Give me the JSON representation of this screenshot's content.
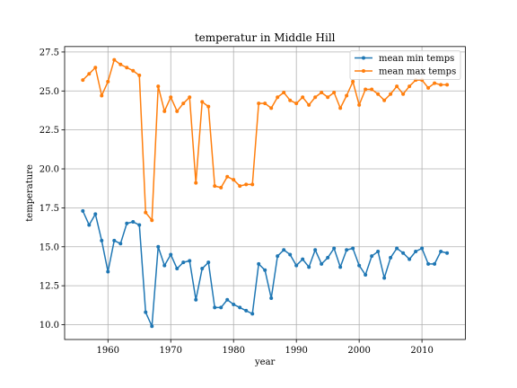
{
  "chart_data": {
    "type": "line",
    "title": "temperatur in Middle Hill",
    "xlabel": "year",
    "ylabel": "temperature",
    "xlim": [
      1953.1,
      2016.9
    ],
    "ylim": [
      9.05,
      27.85
    ],
    "xticks": [
      1960,
      1970,
      1980,
      1990,
      2000,
      2010
    ],
    "yticks": [
      10.0,
      12.5,
      15.0,
      17.5,
      20.0,
      22.5,
      25.0,
      27.5
    ],
    "grid": true,
    "legend_position": "top-right",
    "x": [
      1956,
      1957,
      1958,
      1959,
      1960,
      1961,
      1962,
      1963,
      1964,
      1965,
      1966,
      1967,
      1968,
      1969,
      1970,
      1971,
      1972,
      1973,
      1974,
      1975,
      1976,
      1977,
      1978,
      1979,
      1980,
      1981,
      1982,
      1983,
      1984,
      1985,
      1986,
      1987,
      1988,
      1989,
      1990,
      1991,
      1992,
      1993,
      1994,
      1995,
      1996,
      1997,
      1998,
      1999,
      2000,
      2001,
      2002,
      2003,
      2004,
      2005,
      2006,
      2007,
      2008,
      2009,
      2010,
      2011,
      2012,
      2013,
      2014
    ],
    "series": [
      {
        "name": "mean min temps",
        "color": "#1f77b4",
        "values": [
          17.3,
          16.4,
          17.1,
          15.4,
          13.4,
          15.4,
          15.2,
          16.5,
          16.6,
          16.4,
          10.8,
          9.9,
          15.0,
          13.8,
          14.5,
          13.6,
          14.0,
          14.1,
          11.6,
          13.6,
          14.0,
          11.1,
          11.1,
          11.6,
          11.3,
          11.1,
          10.9,
          10.7,
          13.9,
          13.5,
          11.7,
          14.4,
          14.8,
          14.5,
          13.8,
          14.2,
          13.7,
          14.8,
          13.9,
          14.3,
          14.9,
          13.7,
          14.8,
          14.9,
          13.8,
          13.2,
          14.4,
          14.7,
          13.0,
          14.3,
          14.9,
          14.6,
          14.2,
          14.7,
          14.9,
          13.9,
          13.9,
          14.7,
          14.6
        ]
      },
      {
        "name": "mean max temps",
        "color": "#ff7f0e",
        "values": [
          25.7,
          26.1,
          26.5,
          24.7,
          25.6,
          27.0,
          26.7,
          26.5,
          26.3,
          26.0,
          17.2,
          16.7,
          25.3,
          23.7,
          24.6,
          23.7,
          24.2,
          24.6,
          19.1,
          24.3,
          24.0,
          18.9,
          18.8,
          19.5,
          19.3,
          18.9,
          19.0,
          19.0,
          24.2,
          24.2,
          23.9,
          24.6,
          24.9,
          24.4,
          24.2,
          24.6,
          24.1,
          24.6,
          24.9,
          24.6,
          24.9,
          23.9,
          24.7,
          25.6,
          24.1,
          25.1,
          25.1,
          24.8,
          24.4,
          24.8,
          25.3,
          24.8,
          25.3,
          25.7,
          25.7,
          25.2,
          25.5,
          25.4,
          25.4
        ]
      }
    ]
  }
}
